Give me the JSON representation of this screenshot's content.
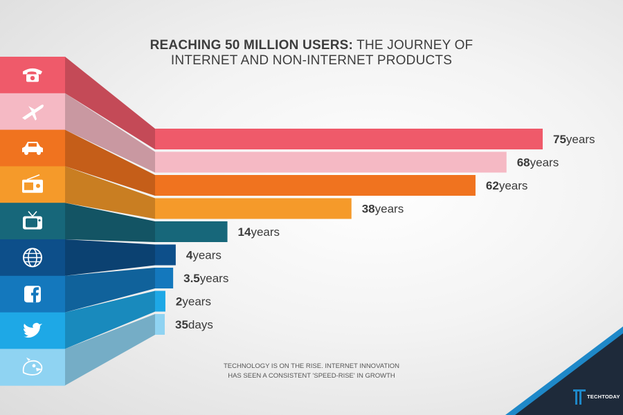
{
  "header": {
    "title_bold": "REACHING 50 MILLION USERS:",
    "title_rest": "THE JOURNEY OF",
    "title_line2": "INTERNET AND NON-INTERNET PRODUCTS"
  },
  "footnote": {
    "line1": "TECHNOLOGY IS ON THE RISE. INTERNET INNOVATION",
    "line2": "HAS SEEN A CONSISTENT 'SPEED-RISE' IN GROWTH"
  },
  "logo": {
    "text": "TECHTODAY",
    "color": "#1e88c8"
  },
  "chart_data": {
    "type": "bar",
    "title": "REACHING 50 MILLION USERS: THE JOURNEY OF INTERNET AND NON-INTERNET PRODUCTS",
    "orientation": "horizontal",
    "categories": [
      "telephone-icon",
      "airplane-icon",
      "car-icon",
      "radio-icon",
      "tv-icon",
      "internet-icon",
      "facebook-icon",
      "twitter-icon",
      "angry-birds-icon"
    ],
    "values_years": [
      75,
      68,
      62,
      38,
      14,
      4,
      3.5,
      2,
      0.0959
    ],
    "labels": [
      {
        "num": "75",
        "unit": "years"
      },
      {
        "num": "68",
        "unit": "years"
      },
      {
        "num": "62",
        "unit": "years"
      },
      {
        "num": "38",
        "unit": "years"
      },
      {
        "num": "14",
        "unit": "years"
      },
      {
        "num": "4",
        "unit": "years"
      },
      {
        "num": "3.5",
        "unit": "years"
      },
      {
        "num": "2",
        "unit": "years"
      },
      {
        "num": "35",
        "unit": "days"
      }
    ],
    "colors": [
      "#ef5a6a",
      "#f5b9c4",
      "#f0731f",
      "#f59a2a",
      "#17677a",
      "#0d4f8a",
      "#1478bd",
      "#1ea8e6",
      "#8fd3f2"
    ],
    "xlabel": "",
    "ylabel": ""
  }
}
